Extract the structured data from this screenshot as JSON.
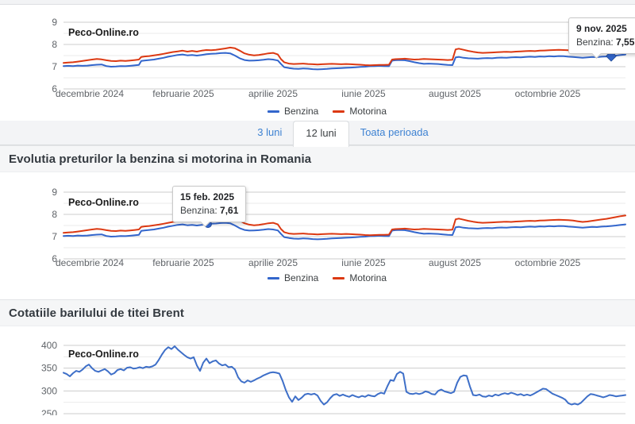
{
  "brand_label": "Peco-Online.ro",
  "colors": {
    "benzina_line": "#3366cc",
    "motorina_line": "#dc3912",
    "brent_line": "#3e6fc8",
    "tab_link_blue": "#3e82d2",
    "major_gridline": "#cccccc",
    "minor_gridline": "#ebebeb",
    "axis_text": "#5f6368"
  },
  "tabs": {
    "items": [
      {
        "label": "3 luni",
        "active": false
      },
      {
        "label": "12 luni",
        "active": true
      },
      {
        "label": "Toata perioada",
        "active": false
      }
    ]
  },
  "sections": [
    {
      "title": "Evolutia preturilor la benzina si motorina in Romania"
    },
    {
      "title": "Cotatiile barilului de titei Brent"
    }
  ],
  "fuel_price_series": {
    "x": [
      80,
      86,
      92,
      98,
      104,
      110,
      116,
      122,
      128,
      134,
      140,
      146,
      152,
      158,
      164,
      170,
      175,
      178,
      182,
      188,
      194,
      200,
      206,
      212,
      218,
      224,
      230,
      236,
      242,
      248,
      254,
      260,
      266,
      272,
      278,
      284,
      290,
      296,
      302,
      308,
      314,
      320,
      326,
      332,
      338,
      344,
      350,
      354,
      358,
      364,
      370,
      376,
      382,
      388,
      394,
      400,
      406,
      412,
      418,
      424,
      430,
      436,
      442,
      448,
      454,
      460,
      466,
      472,
      478,
      484,
      490,
      494,
      498,
      504,
      510,
      516,
      522,
      528,
      534,
      540,
      546,
      552,
      558,
      564,
      570,
      574,
      578,
      584,
      590,
      596,
      602,
      608,
      614,
      620,
      626,
      632,
      638,
      644,
      650,
      656,
      662,
      668,
      674,
      680,
      686,
      692,
      698,
      704,
      710,
      716,
      722,
      728,
      734,
      740,
      746,
      752,
      758,
      764,
      770,
      776,
      782,
      788
    ],
    "series": [
      {
        "name": "Benzina",
        "color": "#3366cc",
        "values": [
          7.03,
          7.04,
          7.03,
          7.05,
          7.04,
          7.05,
          7.07,
          7.09,
          7.1,
          7.03,
          7.0,
          7.01,
          7.03,
          7.02,
          7.04,
          7.06,
          7.08,
          7.26,
          7.28,
          7.3,
          7.32,
          7.36,
          7.4,
          7.45,
          7.49,
          7.53,
          7.55,
          7.51,
          7.53,
          7.5,
          7.53,
          7.56,
          7.58,
          7.59,
          7.61,
          7.62,
          7.6,
          7.5,
          7.38,
          7.3,
          7.27,
          7.28,
          7.29,
          7.31,
          7.34,
          7.32,
          7.28,
          7.12,
          6.98,
          6.94,
          6.91,
          6.9,
          6.92,
          6.91,
          6.89,
          6.88,
          6.89,
          6.9,
          6.92,
          6.93,
          6.94,
          6.95,
          6.96,
          6.97,
          6.99,
          7.0,
          7.02,
          7.03,
          7.04,
          7.03,
          7.02,
          7.27,
          7.29,
          7.3,
          7.29,
          7.25,
          7.2,
          7.16,
          7.13,
          7.14,
          7.13,
          7.12,
          7.1,
          7.08,
          7.07,
          7.42,
          7.44,
          7.4,
          7.38,
          7.37,
          7.36,
          7.38,
          7.39,
          7.38,
          7.4,
          7.41,
          7.4,
          7.42,
          7.43,
          7.42,
          7.44,
          7.45,
          7.44,
          7.46,
          7.45,
          7.47,
          7.46,
          7.48,
          7.47,
          7.45,
          7.44,
          7.42,
          7.4,
          7.42,
          7.44,
          7.43,
          7.45,
          7.46,
          7.48,
          7.5,
          7.53,
          7.55
        ]
      },
      {
        "name": "Motorina",
        "color": "#dc3912",
        "values": [
          7.17,
          7.19,
          7.2,
          7.23,
          7.26,
          7.29,
          7.32,
          7.35,
          7.33,
          7.29,
          7.26,
          7.25,
          7.27,
          7.26,
          7.28,
          7.3,
          7.32,
          7.44,
          7.46,
          7.48,
          7.51,
          7.54,
          7.58,
          7.62,
          7.66,
          7.69,
          7.72,
          7.68,
          7.71,
          7.68,
          7.72,
          7.75,
          7.74,
          7.76,
          7.79,
          7.82,
          7.86,
          7.83,
          7.72,
          7.6,
          7.54,
          7.51,
          7.53,
          7.56,
          7.6,
          7.62,
          7.55,
          7.34,
          7.2,
          7.14,
          7.12,
          7.13,
          7.14,
          7.12,
          7.11,
          7.1,
          7.11,
          7.12,
          7.13,
          7.12,
          7.11,
          7.12,
          7.11,
          7.1,
          7.09,
          7.07,
          7.06,
          7.07,
          7.08,
          7.08,
          7.09,
          7.32,
          7.34,
          7.35,
          7.36,
          7.34,
          7.32,
          7.33,
          7.35,
          7.34,
          7.33,
          7.32,
          7.31,
          7.3,
          7.31,
          7.78,
          7.81,
          7.76,
          7.71,
          7.67,
          7.64,
          7.62,
          7.63,
          7.64,
          7.65,
          7.66,
          7.67,
          7.66,
          7.68,
          7.69,
          7.7,
          7.71,
          7.7,
          7.72,
          7.73,
          7.74,
          7.75,
          7.76,
          7.75,
          7.74,
          7.72,
          7.69,
          7.66,
          7.68,
          7.71,
          7.74,
          7.77,
          7.8,
          7.84,
          7.88,
          7.92,
          7.95
        ]
      }
    ]
  },
  "brent_series": {
    "x_start": 80,
    "x_step": 4,
    "series": [
      {
        "name": "Brent",
        "color": "#3e6fc8",
        "values": [
          340,
          337,
          332,
          339,
          344,
          342,
          347,
          354,
          358,
          350,
          344,
          342,
          345,
          348,
          343,
          336,
          339,
          346,
          348,
          345,
          351,
          352,
          349,
          350,
          352,
          350,
          353,
          352,
          354,
          358,
          368,
          380,
          390,
          396,
          392,
          398,
          391,
          385,
          379,
          374,
          371,
          374,
          356,
          344,
          362,
          371,
          361,
          365,
          367,
          360,
          356,
          358,
          352,
          353,
          347,
          330,
          321,
          318,
          323,
          320,
          323,
          327,
          330,
          334,
          337,
          340,
          341,
          340,
          338,
          322,
          302,
          286,
          276,
          288,
          280,
          285,
          292,
          294,
          292,
          294,
          290,
          278,
          270,
          275,
          284,
          291,
          293,
          289,
          292,
          289,
          287,
          291,
          288,
          286,
          289,
          287,
          291,
          289,
          288,
          293,
          296,
          294,
          310,
          324,
          322,
          337,
          342,
          338,
          298,
          294,
          293,
          295,
          293,
          295,
          299,
          297,
          293,
          292,
          300,
          303,
          299,
          297,
          295,
          298,
          318,
          331,
          334,
          333,
          310,
          291,
          290,
          292,
          288,
          287,
          290,
          288,
          292,
          290,
          293,
          295,
          293,
          296,
          294,
          291,
          293,
          290,
          292,
          290,
          293,
          297,
          301,
          305,
          304,
          299,
          294,
          291,
          288,
          285,
          281,
          273,
          270,
          272,
          270,
          274,
          281,
          288,
          293,
          292,
          290,
          288,
          286,
          288,
          291,
          290,
          288,
          289,
          290,
          291
        ]
      }
    ]
  },
  "chart_data": [
    {
      "type": "line",
      "title": "Peco-Online.ro",
      "series_key": "fuel_price_series",
      "y_ticks": [
        9,
        8,
        7,
        6
      ],
      "ylim": [
        6,
        9
      ],
      "x_tick_labels": [
        "decembrie 2024",
        "februarie 2025",
        "aprilie 2025",
        "iunie 2025",
        "august 2025",
        "octombrie 2025"
      ],
      "legend": [
        "Benzina",
        "Motorina"
      ],
      "legend_position": "bottom",
      "grid": true,
      "tooltip": {
        "date": "9 nov. 2025",
        "label": "Benzina:",
        "value": "7,55"
      },
      "marked_point": {
        "series": "Benzina",
        "date": "9 nov. 2025",
        "value": 7.55
      }
    },
    {
      "type": "line",
      "title": "Peco-Online.ro",
      "series_key": "fuel_price_series",
      "y_ticks": [
        9,
        8,
        7,
        6
      ],
      "ylim": [
        6,
        9
      ],
      "x_tick_labels": [
        "decembrie 2024",
        "februarie 2025",
        "aprilie 2025",
        "iunie 2025",
        "august 2025",
        "octombrie 2025"
      ],
      "legend": [
        "Benzina",
        "Motorina"
      ],
      "legend_position": "bottom",
      "grid": true,
      "tooltip": {
        "date": "15 feb. 2025",
        "label": "Benzina:",
        "value": "7,61"
      },
      "marked_point": {
        "series": "Benzina",
        "date": "15 feb. 2025",
        "value": 7.61
      }
    },
    {
      "type": "line",
      "title": "Peco-Online.ro",
      "series_key": "brent_series",
      "y_ticks": [
        400,
        350,
        300,
        250
      ],
      "ylim": [
        250,
        400
      ],
      "x_tick_labels": [],
      "legend": [],
      "grid": true
    }
  ]
}
